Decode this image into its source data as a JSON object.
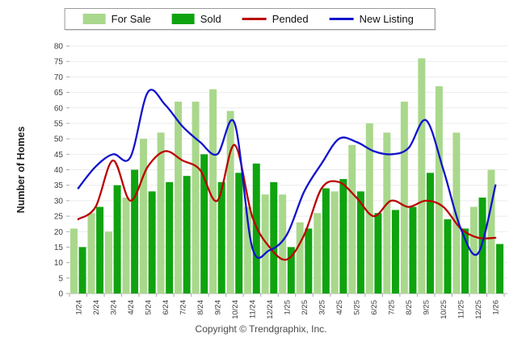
{
  "legend": {
    "items": [
      {
        "label": "For Sale",
        "kind": "bar",
        "color": "#a9d88c"
      },
      {
        "label": "Sold",
        "kind": "bar",
        "color": "#0fa30f"
      },
      {
        "label": "Pended",
        "kind": "line",
        "color": "#bb0000"
      },
      {
        "label": "New Listing",
        "kind": "line",
        "color": "#1212cc"
      }
    ]
  },
  "y_axis_title": "Number of Homes",
  "footer_text": "Copyright © Trendgraphix, Inc.",
  "colors": {
    "for_sale": "#a9d88c",
    "sold": "#0fa30f",
    "pended": "#bb0000",
    "new_listing": "#1212cc",
    "gridline": "#ebebeb",
    "axis_line": "#b8b8b8",
    "tick": "#aaaaaa",
    "tick_label": "#3d3d3d"
  },
  "chart_data": {
    "type": "bar",
    "categories": [
      "1/24",
      "2/24",
      "3/24",
      "4/24",
      "5/24",
      "6/24",
      "7/24",
      "8/24",
      "9/24",
      "10/24",
      "11/24",
      "12/24",
      "1/25",
      "2/25",
      "3/25",
      "4/25",
      "5/25",
      "6/25",
      "7/25",
      "8/25",
      "9/25",
      "10/25",
      "11/25",
      "12/25",
      "1/26"
    ],
    "series": [
      {
        "name": "For Sale",
        "type": "bar",
        "values": [
          21,
          26,
          20,
          31,
          50,
          52,
          62,
          62,
          66,
          59,
          28,
          32,
          32,
          23,
          26,
          33,
          48,
          55,
          52,
          62,
          76,
          67,
          52,
          28,
          40
        ]
      },
      {
        "name": "Sold",
        "type": "bar",
        "values": [
          15,
          28,
          35,
          40,
          33,
          36,
          38,
          45,
          36,
          39,
          42,
          36,
          15,
          21,
          34,
          37,
          33,
          26,
          27,
          28,
          39,
          24,
          21,
          31,
          16
        ]
      },
      {
        "name": "Pended",
        "type": "line",
        "values": [
          24,
          28,
          43,
          30,
          41,
          46,
          43,
          40,
          30,
          48,
          25,
          15,
          11,
          19,
          34,
          36,
          31,
          25,
          30,
          28,
          30,
          28,
          21,
          18,
          18
        ]
      },
      {
        "name": "New Listing",
        "type": "line",
        "values": [
          34,
          41,
          45,
          44,
          65,
          61,
          54,
          49,
          45,
          55,
          15,
          14,
          19,
          33,
          42,
          50,
          49,
          46,
          45,
          47,
          56,
          40,
          21,
          13,
          35
        ]
      }
    ],
    "title": "",
    "xlabel": "",
    "ylabel": "Number of Homes",
    "ylim": [
      0,
      80
    ],
    "ytick_step": 5,
    "grid": true,
    "legend_position": "top-center"
  }
}
